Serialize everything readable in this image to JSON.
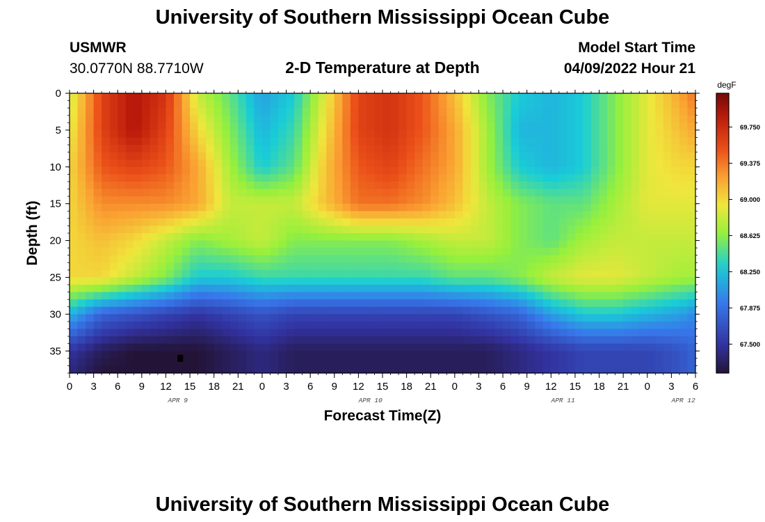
{
  "page": {
    "title": "University of Southern Mississippi Ocean Cube",
    "footer_title": "University of Southern Mississippi Ocean Cube"
  },
  "header": {
    "station": "USMWR",
    "location": "30.0770N  88.7710W",
    "plot_name": "2-D Temperature at Depth",
    "model_start_label": "Model Start Time",
    "model_start_value": "04/09/2022 Hour 21"
  },
  "chart_data": {
    "type": "heatmap",
    "title": "2-D Temperature at Depth",
    "xlabel": "Forecast Time(Z)",
    "ylabel": "Depth (ft)",
    "x_tick_labels": [
      "0",
      "3",
      "6",
      "9",
      "12",
      "15",
      "18",
      "21",
      "0",
      "3",
      "6",
      "9",
      "12",
      "15",
      "18",
      "21",
      "0",
      "3",
      "6",
      "9",
      "12",
      "15",
      "18",
      "21",
      "0",
      "3",
      "6"
    ],
    "x_date_labels": [
      {
        "label": "APR 9",
        "at_tick": 4.5
      },
      {
        "label": "APR 10",
        "at_tick": 12.5
      },
      {
        "label": "APR 11",
        "at_tick": 20.5
      },
      {
        "label": "APR 12",
        "at_tick": 25.5
      }
    ],
    "x_range_hours": [
      0,
      78
    ],
    "ylim_ft": [
      38,
      0
    ],
    "y_ticks": [
      0,
      5,
      10,
      15,
      20,
      25,
      30,
      35
    ],
    "colorbar": {
      "unit": "degF",
      "ticks": [
        "69.750",
        "69.375",
        "69.000",
        "68.625",
        "68.250",
        "67.875",
        "67.500"
      ],
      "range": [
        67.2,
        70.1
      ]
    },
    "time_hours": [
      0,
      4,
      8,
      12,
      16,
      20,
      24,
      28,
      32,
      36,
      40,
      44,
      48,
      52,
      56,
      60,
      64,
      68,
      72,
      76,
      78
    ],
    "depth_ft": [
      0,
      5,
      10,
      15,
      20,
      25,
      30,
      35,
      38
    ],
    "temperature_degF": [
      [
        68.8,
        69.6,
        69.9,
        69.7,
        68.8,
        68.5,
        68.1,
        68.3,
        68.9,
        69.6,
        69.7,
        69.5,
        69.1,
        68.6,
        68.3,
        68.2,
        68.3,
        68.6,
        68.9,
        69.2,
        69.4
      ],
      [
        68.9,
        69.6,
        69.9,
        69.6,
        69.0,
        68.6,
        68.2,
        68.4,
        69.0,
        69.6,
        69.7,
        69.5,
        69.2,
        68.7,
        68.2,
        68.2,
        68.3,
        68.6,
        68.9,
        69.1,
        69.2
      ],
      [
        69.0,
        69.5,
        69.6,
        69.5,
        69.2,
        68.7,
        68.3,
        68.5,
        69.1,
        69.5,
        69.6,
        69.4,
        69.2,
        68.7,
        68.3,
        68.2,
        68.3,
        68.6,
        68.9,
        69.0,
        69.0
      ],
      [
        69.0,
        69.3,
        69.3,
        69.3,
        69.2,
        68.8,
        68.8,
        68.8,
        69.1,
        69.4,
        69.4,
        69.3,
        69.1,
        68.8,
        68.6,
        68.5,
        68.5,
        68.7,
        68.9,
        68.9,
        68.9
      ],
      [
        69.0,
        69.1,
        69.0,
        68.8,
        68.6,
        68.7,
        68.8,
        68.6,
        68.6,
        68.6,
        68.6,
        68.7,
        68.8,
        68.8,
        68.6,
        68.5,
        68.7,
        68.8,
        68.8,
        68.8,
        68.8
      ],
      [
        69.0,
        69.0,
        68.8,
        68.6,
        68.3,
        68.3,
        68.4,
        68.4,
        68.4,
        68.4,
        68.4,
        68.4,
        68.5,
        68.5,
        68.6,
        68.8,
        68.9,
        68.9,
        68.8,
        68.7,
        68.7
      ],
      [
        68.2,
        67.8,
        67.7,
        67.6,
        67.5,
        67.6,
        67.7,
        67.6,
        67.6,
        67.6,
        67.6,
        67.6,
        67.6,
        67.7,
        67.8,
        68.1,
        68.3,
        68.3,
        68.2,
        68.1,
        68.0
      ],
      [
        67.5,
        67.3,
        67.2,
        67.2,
        67.2,
        67.3,
        67.4,
        67.3,
        67.3,
        67.3,
        67.3,
        67.3,
        67.3,
        67.3,
        67.4,
        67.5,
        67.6,
        67.6,
        67.6,
        67.7,
        67.8
      ],
      [
        67.4,
        67.2,
        67.2,
        67.2,
        67.2,
        67.3,
        67.4,
        67.3,
        67.3,
        67.3,
        67.3,
        67.3,
        67.3,
        67.3,
        67.4,
        67.5,
        67.6,
        67.6,
        67.6,
        67.7,
        67.8
      ]
    ],
    "marker": {
      "time_hours": 13.8,
      "depth_ft": 36
    }
  }
}
